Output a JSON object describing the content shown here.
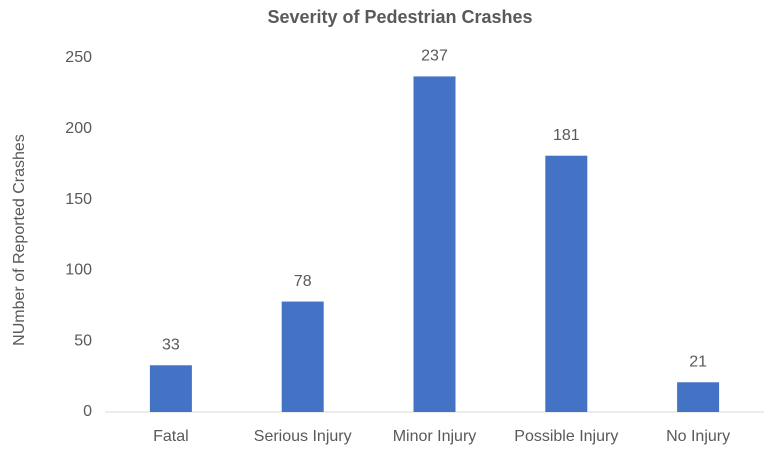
{
  "chart_data": {
    "type": "bar",
    "title": "Severity of Pedestrian Crashes",
    "y_label": "NUmber of Reported Crashes",
    "categories": [
      "Fatal",
      "Serious Injury",
      "Minor Injury",
      "Possible Injury",
      "No Injury"
    ],
    "values": [
      33,
      78,
      237,
      181,
      21
    ],
    "color": "#4472c4",
    "ylim": [
      0,
      250
    ],
    "yticks": [
      0,
      50,
      100,
      150,
      200,
      250
    ],
    "grid": false,
    "data_labels": true
  }
}
